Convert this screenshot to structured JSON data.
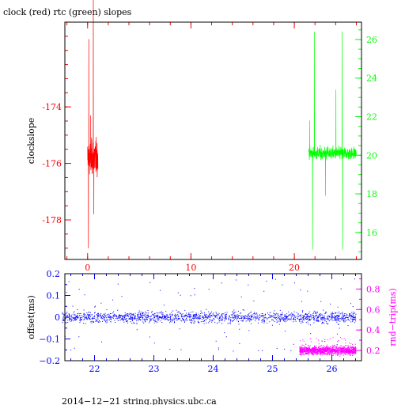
{
  "colors": {
    "clock": "#ff0000",
    "rtc": "#00ff00",
    "offset": "#0000ff",
    "roundtrip": "#ff00ff",
    "frame": "#000000"
  },
  "chart_data": [
    {
      "type": "line",
      "title": "clock (red) rtc (green) slopes",
      "xlabel": "",
      "ylabel": "clockslope",
      "x_ticks": [
        "0",
        "10",
        "20"
      ],
      "xlim": [
        -2.2,
        26.5
      ],
      "y_left_ticks": [
        "-174",
        "-176",
        "-178"
      ],
      "ylim_left": [
        -179.4,
        -171.0
      ],
      "y_right_ticks": [
        "16",
        "18",
        "20",
        "22",
        "24",
        "26"
      ],
      "ylim_right": [
        14.6,
        26.9
      ],
      "grid": false,
      "series": [
        {
          "axis": "left",
          "x_range": [
            0.0,
            1.0
          ],
          "center": -175.8,
          "typical_range": [
            -176.7,
            -174.9
          ],
          "extremes": [
            -179.0,
            -171.6
          ]
        },
        {
          "axis": "right",
          "x_range": [
            21.4,
            26.0
          ],
          "center": 20.1,
          "typical_range": [
            19.6,
            20.6
          ],
          "extremes": [
            15.1,
            26.4
          ]
        }
      ]
    },
    {
      "type": "scatter",
      "xlabel": "",
      "ylabel": "offset(ms)",
      "y2label": "rnd−trip(ms)",
      "x_ticks": [
        "22",
        "23",
        "24",
        "25",
        "26"
      ],
      "xlim": [
        21.5,
        26.5
      ],
      "y_left_ticks": [
        "0.2",
        "0.1",
        "0",
        "−0.1",
        "−0.2"
      ],
      "ylim_left": [
        -0.2,
        0.2
      ],
      "y_right_ticks": [
        "0.8",
        "0.6",
        "0.4",
        "0.2"
      ],
      "ylim_right": [
        0.1,
        0.95
      ],
      "grid": false,
      "series": [
        {
          "axis": "left",
          "x_range": [
            21.45,
            26.4
          ],
          "center": 0.0,
          "typical_range": [
            -0.03,
            0.03
          ],
          "outlier_range": [
            -0.16,
            0.18
          ]
        },
        {
          "axis": "right",
          "x_range": [
            25.45,
            26.4
          ],
          "center": 0.2,
          "typical_range": [
            0.15,
            0.24
          ],
          "outlier_range": [
            0.15,
            0.33
          ]
        }
      ]
    }
  ],
  "footer": "2014−12−21 string.physics.ubc.ca"
}
